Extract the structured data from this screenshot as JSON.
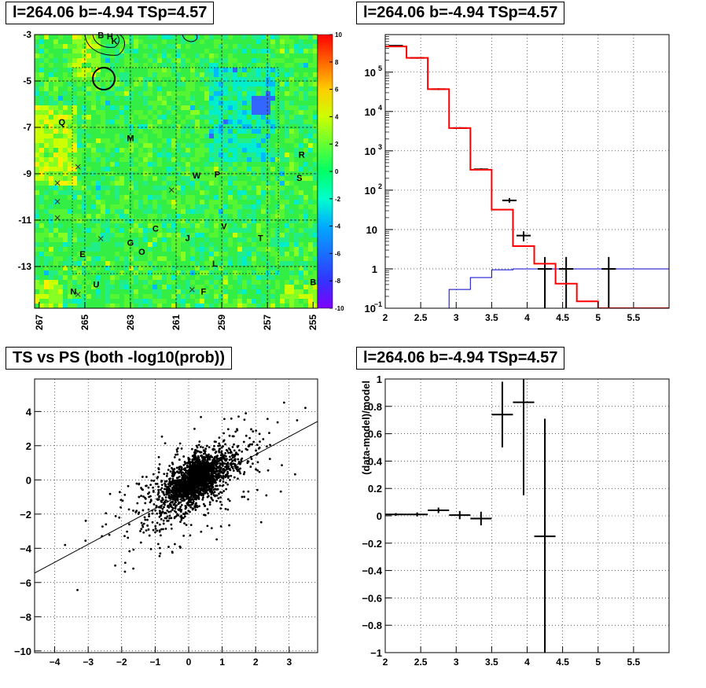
{
  "panels": {
    "skymap": {
      "title": "l=264.06 b=-4.94 TSp=4.57"
    },
    "spectrum": {
      "title": "l=264.06 b=-4.94 TSp=4.57"
    },
    "scatter": {
      "title": "TS vs PS (both -log10(prob))"
    },
    "residual": {
      "title": "l=264.06 b=-4.94 TSp=4.57"
    }
  },
  "chart_data": [
    {
      "type": "heatmap",
      "title": "l=264.06 b=-4.94 TSp=4.57",
      "x_ticks": [
        "267",
        "265",
        "263",
        "261",
        "259",
        "257",
        "255"
      ],
      "x_tick_values": [
        267,
        265,
        263,
        261,
        259,
        257,
        255
      ],
      "y_ticks": [
        "-3",
        "-5",
        "-7",
        "-9",
        "-11",
        "-13"
      ],
      "y_tick_values": [
        -3,
        -5,
        -7,
        -9,
        -11,
        -13
      ],
      "xlim": [
        267.2,
        254.8
      ],
      "ylim": [
        -14.8,
        -3.0
      ],
      "colorbar_ticks": [
        "10",
        "8",
        "6",
        "4",
        "2",
        "0",
        "-2",
        "-4",
        "-6",
        "-8",
        "-10"
      ],
      "colorbar_range": [
        -10,
        10
      ],
      "sources": [
        {
          "label": "B",
          "l": 264.3,
          "b": -3.15
        },
        {
          "label": "H",
          "l": 263.9,
          "b": -3.2
        },
        {
          "label": "K",
          "l": 263.7,
          "b": -3.4
        },
        {
          "label": "Q",
          "l": 266.0,
          "b": -6.9
        },
        {
          "label": "M",
          "l": 263.0,
          "b": -7.6
        },
        {
          "label": "R",
          "l": 255.5,
          "b": -8.3
        },
        {
          "label": "S",
          "l": 255.6,
          "b": -9.3
        },
        {
          "label": "W",
          "l": 260.1,
          "b": -9.2
        },
        {
          "label": "P",
          "l": 259.2,
          "b": -9.15
        },
        {
          "label": "C",
          "l": 261.9,
          "b": -11.5
        },
        {
          "label": "J",
          "l": 260.5,
          "b": -11.9
        },
        {
          "label": "V",
          "l": 258.9,
          "b": -11.4
        },
        {
          "label": "T",
          "l": 257.3,
          "b": -11.9
        },
        {
          "label": "G",
          "l": 263.0,
          "b": -12.1
        },
        {
          "label": "O",
          "l": 262.5,
          "b": -12.5
        },
        {
          "label": "E",
          "l": 265.1,
          "b": -12.6
        },
        {
          "label": "L",
          "l": 259.3,
          "b": -13.0
        },
        {
          "label": "U",
          "l": 264.5,
          "b": -13.9
        },
        {
          "label": "N",
          "l": 265.5,
          "b": -14.2
        },
        {
          "label": "F",
          "l": 259.8,
          "b": -14.2
        },
        {
          "label": "B",
          "l": 255.0,
          "b": -13.8
        }
      ],
      "crosses": [
        {
          "l": 266.2,
          "b": -9.4
        },
        {
          "l": 265.3,
          "b": -8.7
        },
        {
          "l": 266.2,
          "b": -10.2
        },
        {
          "l": 266.2,
          "b": -10.9
        },
        {
          "l": 264.3,
          "b": -11.8
        },
        {
          "l": 261.2,
          "b": -9.7
        },
        {
          "l": 265.3,
          "b": -14.2
        },
        {
          "l": 260.3,
          "b": -14.0
        }
      ]
    },
    {
      "type": "line",
      "title": "l=264.06 b=-4.94 TSp=4.57",
      "x_ticks": [
        "2",
        "2.5",
        "3",
        "3.5",
        "4",
        "4.5",
        "5",
        "5.5"
      ],
      "y_ticks": [
        "10^-1",
        "1",
        "10",
        "10^2",
        "10^3",
        "10^4",
        "10^5"
      ],
      "xlim": [
        2,
        6
      ],
      "ylim": [
        0.1,
        900000
      ],
      "yscale": "log",
      "bin_edges": [
        2.0,
        2.3,
        2.6,
        2.9,
        3.2,
        3.5,
        3.8,
        4.1,
        4.4,
        4.7,
        5.0,
        5.3,
        5.6,
        6.0
      ],
      "series": [
        {
          "color": "#ff0000",
          "values": [
            450000,
            230000,
            37000,
            3800,
            330,
            32,
            3.8,
            1.35,
            0.42,
            0.15,
            0.1,
            0.1,
            0.1
          ]
        },
        {
          "color": "#0000cc",
          "values": [
            0.1,
            0.1,
            0.1,
            0.3,
            0.6,
            0.95,
            1.0,
            1.0,
            1.0,
            1.0,
            1.0,
            1.0,
            1.0
          ]
        }
      ],
      "data_points": [
        {
          "x": 2.15,
          "y": 470000,
          "ylo": 450000,
          "yhi": 490000
        },
        {
          "x": 2.45,
          "y": 230000,
          "ylo": 220000,
          "yhi": 240000
        },
        {
          "x": 2.75,
          "y": 37000,
          "ylo": 35000,
          "yhi": 39000
        },
        {
          "x": 3.05,
          "y": 3800,
          "ylo": 3600,
          "yhi": 4000
        },
        {
          "x": 3.35,
          "y": 340,
          "ylo": 320,
          "yhi": 360
        },
        {
          "x": 3.75,
          "y": 55,
          "ylo": 48,
          "yhi": 63
        },
        {
          "x": 3.95,
          "y": 7,
          "ylo": 5,
          "yhi": 9
        },
        {
          "x": 4.25,
          "y": 1,
          "ylo": 0.1,
          "yhi": 2
        },
        {
          "x": 4.55,
          "y": 1,
          "ylo": 0.1,
          "yhi": 2
        },
        {
          "x": 5.15,
          "y": 1,
          "ylo": 0.1,
          "yhi": 2
        }
      ]
    },
    {
      "type": "scatter",
      "title": "TS vs PS (both -log10(prob))",
      "x_ticks": [
        "-4",
        "-3",
        "-2",
        "-1",
        "0",
        "1",
        "2",
        "3"
      ],
      "y_ticks": [
        "-10",
        "-8",
        "-6",
        "-4",
        "-2",
        "0",
        "2",
        "4"
      ],
      "xlim": [
        -4.6,
        3.85
      ],
      "ylim": [
        -10.1,
        5.9
      ],
      "fit_line": {
        "slope": 1.05,
        "intercept": -0.62
      }
    },
    {
      "type": "scatter",
      "title": "l=264.06 b=-4.94 TSp=4.57",
      "ylabel": "(data-model)/model",
      "x_ticks": [
        "2",
        "2.5",
        "3",
        "3.5",
        "4",
        "4.5",
        "5",
        "5.5"
      ],
      "y_ticks": [
        "-1",
        "-0.8",
        "-0.6",
        "-0.4",
        "-0.2",
        "0",
        "0.2",
        "0.4",
        "0.6",
        "0.8",
        "1"
      ],
      "xlim": [
        2,
        6
      ],
      "ylim": [
        -1,
        1
      ],
      "points": [
        {
          "x": 2.15,
          "y": 0.01,
          "xerr": 0.15,
          "yerr": 0.01
        },
        {
          "x": 2.45,
          "y": 0.01,
          "xerr": 0.15,
          "yerr": 0.015
        },
        {
          "x": 2.75,
          "y": 0.04,
          "xerr": 0.15,
          "yerr": 0.02
        },
        {
          "x": 3.05,
          "y": 0.005,
          "xerr": 0.15,
          "yerr": 0.03
        },
        {
          "x": 3.35,
          "y": -0.02,
          "xerr": 0.15,
          "yerr": 0.05
        },
        {
          "x": 3.65,
          "y": 0.74,
          "xerr": 0.15,
          "yerr": 0.24
        },
        {
          "x": 3.95,
          "y": 0.83,
          "xerr": 0.15,
          "yerr": 0.68
        },
        {
          "x": 4.25,
          "y": -0.15,
          "xerr": 0.15,
          "yerr": 0.86
        }
      ]
    }
  ]
}
